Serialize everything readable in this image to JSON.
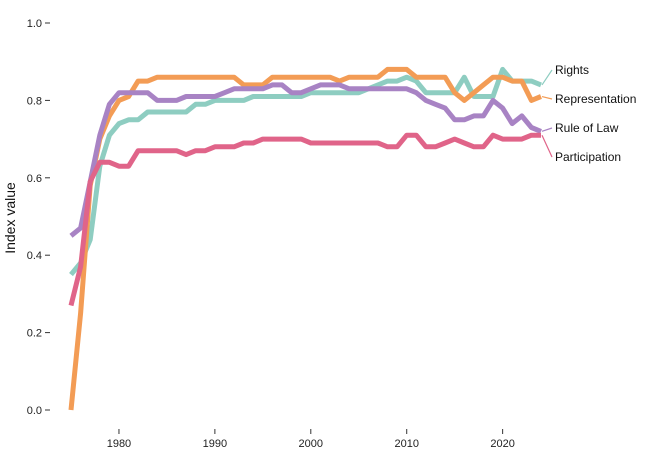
{
  "chart_data": {
    "type": "line",
    "title": "",
    "xlabel": "",
    "ylabel": "Index value",
    "xlim": [
      1975,
      2024
    ],
    "ylim": [
      0,
      1
    ],
    "x_ticks": [
      1980,
      1990,
      2000,
      2010,
      2020
    ],
    "y_ticks": [
      "0.0",
      "0.2",
      "0.4",
      "0.6",
      "0.8",
      "1.0"
    ],
    "grid": false,
    "legend": "direct labels at right end of lines",
    "x": [
      1975,
      1976,
      1977,
      1978,
      1979,
      1980,
      1981,
      1982,
      1983,
      1984,
      1985,
      1986,
      1987,
      1988,
      1989,
      1990,
      1991,
      1992,
      1993,
      1994,
      1995,
      1996,
      1997,
      1998,
      1999,
      2000,
      2001,
      2002,
      2003,
      2004,
      2005,
      2006,
      2007,
      2008,
      2009,
      2010,
      2011,
      2012,
      2013,
      2014,
      2015,
      2016,
      2017,
      2018,
      2019,
      2020,
      2021,
      2022,
      2023,
      2024
    ],
    "series": [
      {
        "name": "Rights",
        "color": "#8ecdc1",
        "values": [
          0.35,
          0.38,
          0.44,
          0.63,
          0.71,
          0.74,
          0.75,
          0.75,
          0.77,
          0.77,
          0.77,
          0.77,
          0.77,
          0.79,
          0.79,
          0.8,
          0.8,
          0.8,
          0.8,
          0.81,
          0.81,
          0.81,
          0.81,
          0.81,
          0.81,
          0.82,
          0.82,
          0.82,
          0.82,
          0.82,
          0.82,
          0.83,
          0.84,
          0.85,
          0.85,
          0.86,
          0.85,
          0.82,
          0.82,
          0.82,
          0.82,
          0.86,
          0.81,
          0.81,
          0.81,
          0.88,
          0.85,
          0.85,
          0.85,
          0.84
        ]
      },
      {
        "name": "Representation",
        "color": "#f39c55",
        "values": [
          0.0,
          0.25,
          0.58,
          0.7,
          0.76,
          0.8,
          0.81,
          0.85,
          0.85,
          0.86,
          0.86,
          0.86,
          0.86,
          0.86,
          0.86,
          0.86,
          0.86,
          0.86,
          0.84,
          0.84,
          0.84,
          0.86,
          0.86,
          0.86,
          0.86,
          0.86,
          0.86,
          0.86,
          0.85,
          0.86,
          0.86,
          0.86,
          0.86,
          0.88,
          0.88,
          0.88,
          0.86,
          0.86,
          0.86,
          0.86,
          0.82,
          0.8,
          0.82,
          0.84,
          0.86,
          0.86,
          0.85,
          0.85,
          0.8,
          0.81
        ]
      },
      {
        "name": "Rule of Law",
        "color": "#a883c4",
        "values": [
          0.45,
          0.47,
          0.59,
          0.71,
          0.79,
          0.82,
          0.82,
          0.82,
          0.82,
          0.8,
          0.8,
          0.8,
          0.81,
          0.81,
          0.81,
          0.81,
          0.82,
          0.83,
          0.83,
          0.83,
          0.83,
          0.84,
          0.84,
          0.82,
          0.82,
          0.83,
          0.84,
          0.84,
          0.84,
          0.83,
          0.83,
          0.83,
          0.83,
          0.83,
          0.83,
          0.83,
          0.82,
          0.8,
          0.79,
          0.78,
          0.75,
          0.75,
          0.76,
          0.76,
          0.8,
          0.78,
          0.74,
          0.76,
          0.73,
          0.72
        ]
      },
      {
        "name": "Participation",
        "color": "#e06489",
        "values": [
          0.27,
          0.37,
          0.59,
          0.64,
          0.64,
          0.63,
          0.63,
          0.67,
          0.67,
          0.67,
          0.67,
          0.67,
          0.66,
          0.67,
          0.67,
          0.68,
          0.68,
          0.68,
          0.69,
          0.69,
          0.7,
          0.7,
          0.7,
          0.7,
          0.7,
          0.69,
          0.69,
          0.69,
          0.69,
          0.69,
          0.69,
          0.69,
          0.69,
          0.68,
          0.68,
          0.71,
          0.71,
          0.68,
          0.68,
          0.69,
          0.7,
          0.69,
          0.68,
          0.68,
          0.71,
          0.7,
          0.7,
          0.7,
          0.71,
          0.71
        ]
      }
    ]
  }
}
